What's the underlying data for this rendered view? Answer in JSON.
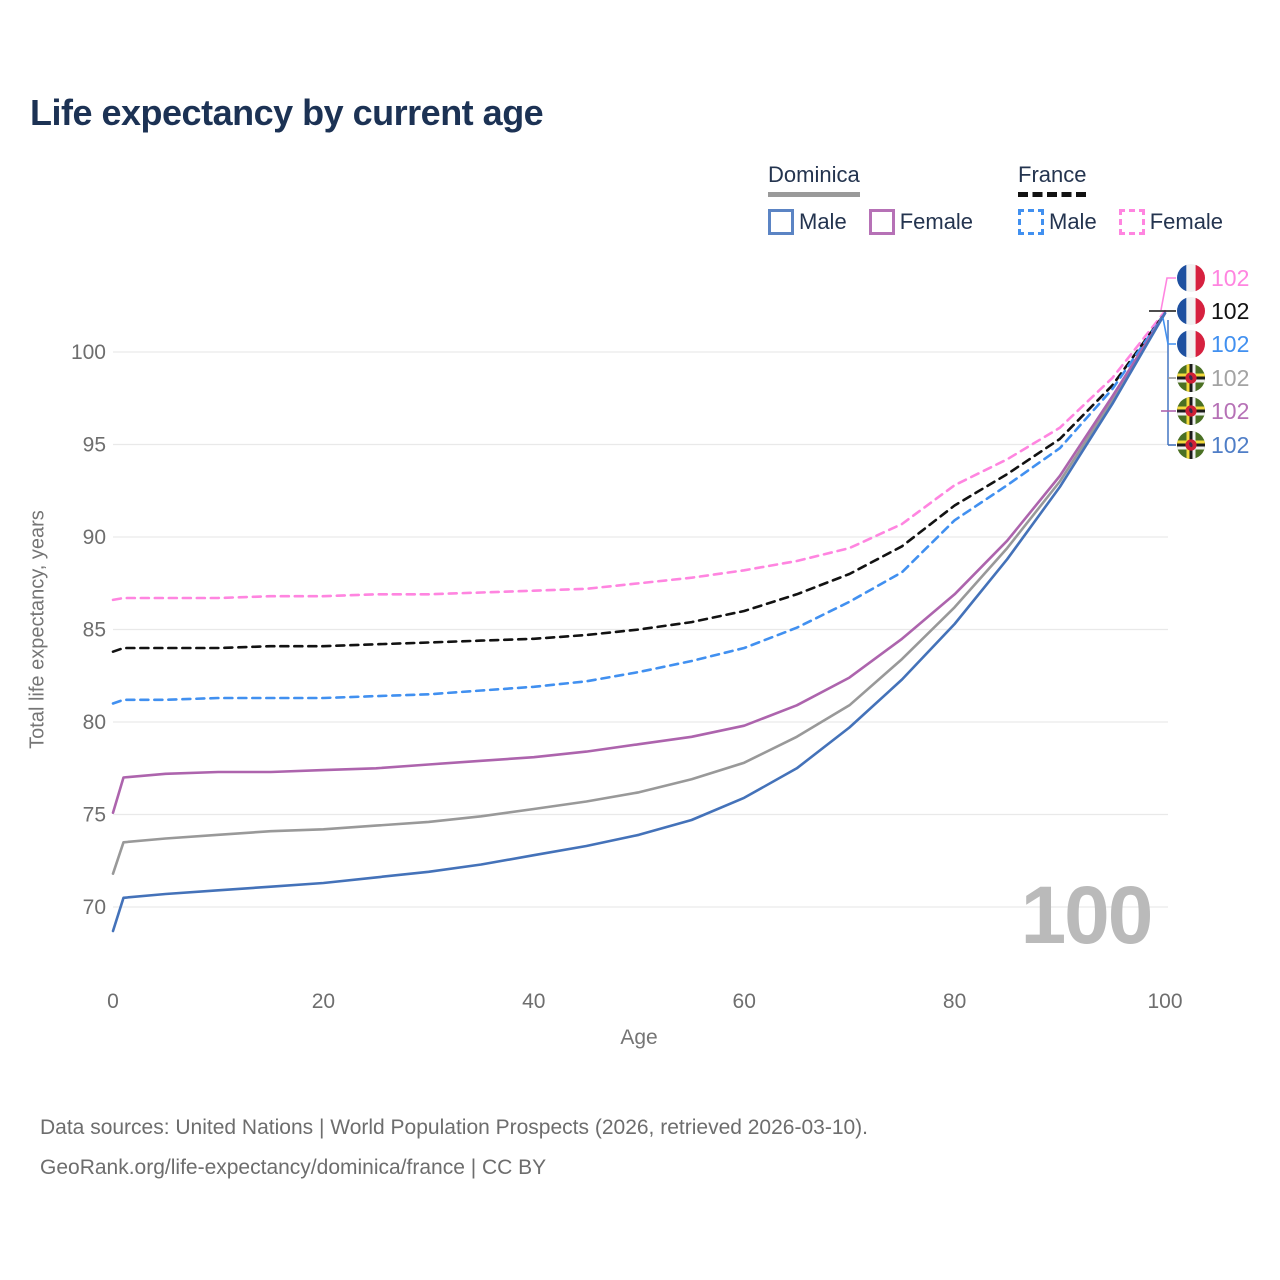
{
  "title": "Life expectancy by current age",
  "watermark": "100",
  "legend": {
    "groups": [
      {
        "country": "Dominica",
        "line_style": "solid",
        "underline_color": "#9a9a9a",
        "items": [
          {
            "label": "Male",
            "color": "#4472b9"
          },
          {
            "label": "Female",
            "color": "#ad64ad"
          }
        ]
      },
      {
        "country": "France",
        "line_style": "dashed",
        "underline_color": "#121212",
        "items": [
          {
            "label": "Male",
            "color": "#4190f0"
          },
          {
            "label": "Female",
            "color": "#ff85e0"
          }
        ]
      }
    ]
  },
  "footer": {
    "line1": "Data sources: United Nations | World Population Prospects (2026, retrieved 2026-03-10).",
    "line2": "GeoRank.org/life-expectancy/dominica/france | CC BY"
  },
  "chart_data": {
    "type": "line",
    "title": "Life expectancy by current age",
    "xlabel": "Age",
    "ylabel": "Total life expectancy, years",
    "xlim": [
      0,
      100
    ],
    "ylim": [
      68,
      103
    ],
    "x_ticks": [
      0,
      20,
      40,
      60,
      80,
      100
    ],
    "y_ticks": [
      70,
      75,
      80,
      85,
      90,
      95,
      100
    ],
    "grid": true,
    "legend_position": "top-right",
    "x": [
      0,
      1,
      5,
      10,
      15,
      20,
      25,
      30,
      35,
      40,
      45,
      50,
      55,
      60,
      65,
      70,
      75,
      80,
      85,
      90,
      95,
      100
    ],
    "series": [
      {
        "name": "France Female",
        "country": "France",
        "sex": "Female",
        "color": "#ff85e0",
        "dash": "dashed",
        "flag": "france",
        "end_label": "102",
        "end_label_color": "#ff85e0",
        "values": [
          86.6,
          86.7,
          86.7,
          86.7,
          86.8,
          86.8,
          86.9,
          86.9,
          87.0,
          87.1,
          87.2,
          87.5,
          87.8,
          88.2,
          88.7,
          89.4,
          90.7,
          92.8,
          94.2,
          95.9,
          98.6,
          102.2
        ]
      },
      {
        "name": "France Both sexes",
        "country": "France",
        "sex": "Both",
        "color": "#121212",
        "dash": "dashed",
        "flag": "france",
        "end_label": "102",
        "end_label_color": "#121212",
        "values": [
          83.8,
          84.0,
          84.0,
          84.0,
          84.1,
          84.1,
          84.2,
          84.3,
          84.4,
          84.5,
          84.7,
          85.0,
          85.4,
          86.0,
          86.9,
          88.0,
          89.5,
          91.7,
          93.4,
          95.3,
          98.2,
          102.1
        ]
      },
      {
        "name": "France Male",
        "country": "France",
        "sex": "Male",
        "color": "#4190f0",
        "dash": "dashed",
        "flag": "france",
        "end_label": "102",
        "end_label_color": "#4190f0",
        "values": [
          81.0,
          81.2,
          81.2,
          81.3,
          81.3,
          81.3,
          81.4,
          81.5,
          81.7,
          81.9,
          82.2,
          82.7,
          83.3,
          84.0,
          85.1,
          86.5,
          88.1,
          90.9,
          92.8,
          94.8,
          98.0,
          102.1
        ]
      },
      {
        "name": "Dominica Both sexes",
        "country": "Dominica",
        "sex": "Both",
        "color": "#999999",
        "dash": "solid",
        "flag": "dominica",
        "end_label": "102",
        "end_label_color": "#a3a3a3",
        "values": [
          71.8,
          73.5,
          73.7,
          73.9,
          74.1,
          74.2,
          74.4,
          74.6,
          74.9,
          75.3,
          75.7,
          76.2,
          76.9,
          77.8,
          79.2,
          80.9,
          83.4,
          86.2,
          89.4,
          93.0,
          97.4,
          102.1
        ]
      },
      {
        "name": "Dominica Female",
        "country": "Dominica",
        "sex": "Female",
        "color": "#ad64ad",
        "dash": "solid",
        "flag": "dominica",
        "end_label": "102",
        "end_label_color": "#b671b6",
        "values": [
          75.1,
          77.0,
          77.2,
          77.3,
          77.3,
          77.4,
          77.5,
          77.7,
          77.9,
          78.1,
          78.4,
          78.8,
          79.2,
          79.8,
          80.9,
          82.4,
          84.5,
          86.9,
          89.8,
          93.3,
          97.6,
          102.1
        ]
      },
      {
        "name": "Dominica Male",
        "country": "Dominica",
        "sex": "Male",
        "color": "#4472b9",
        "dash": "solid",
        "flag": "dominica",
        "end_label": "102",
        "end_label_color": "#4f7ec7",
        "values": [
          68.7,
          70.5,
          70.7,
          70.9,
          71.1,
          71.3,
          71.6,
          71.9,
          72.3,
          72.8,
          73.3,
          73.9,
          74.7,
          75.9,
          77.5,
          79.7,
          82.3,
          85.3,
          88.8,
          92.7,
          97.2,
          102.1
        ]
      }
    ]
  }
}
